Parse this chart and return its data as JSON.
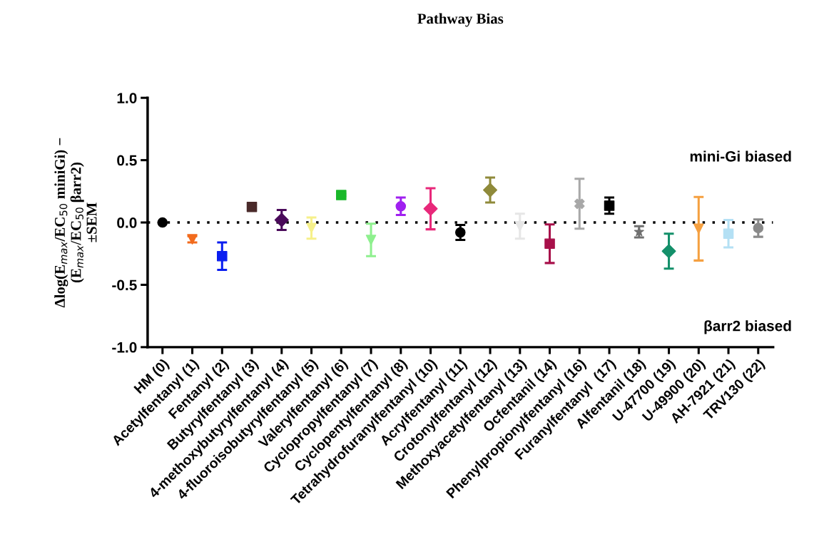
{
  "chart_data": {
    "type": "scatter",
    "title": "Pathway Bias",
    "ylabel": "Δlog(E$_{max}$/EC$_{50}$ miniGi) −\n(E$_{max}$/EC$_{50}$ βarr2)\n±SEM",
    "categories": [
      "HM (0)",
      "Acetylfentanyl (1)",
      "Fentanyl (2)",
      "Butyrylfentanyl (3)",
      "4-methoxybutyrylfentanyl (4)",
      "4-fluoroisobutyrylfentanyl (5)",
      "Valerylfentanyl (6)",
      "Cyclopropylfentanyl (7)",
      "Cyclopentylfentanyl (8)",
      "Tetrahydrofuranylfentanyl (10)",
      "Acrylfentanyl (11)",
      "Crotonylfentanyl (12)",
      "Methoxyacetylfentanyl (13)",
      "Ocfentanil (14)",
      "Phenylpropionylfentanyl (16)",
      "Furanylfentanyl  (17)",
      "Alfentanil (18)",
      "U-47700 (19)",
      "U-49900 (20)",
      "AH-7921 (21)",
      "TRV130 (22)"
    ],
    "series": [
      {
        "x": [
          "HM (0)"
        ],
        "values": [
          0.0
        ],
        "errors": [
          null
        ],
        "color": "#000000",
        "marker": "circle"
      },
      {
        "x": [
          "Acetylfentanyl (1)"
        ],
        "values": [
          -0.135
        ],
        "errors": [
          0.025
        ],
        "color": "#f26b1d",
        "marker": "triangle"
      },
      {
        "x": [
          "Fentanyl (2)"
        ],
        "values": [
          -0.27
        ],
        "errors": [
          0.11
        ],
        "color": "#0a1ef0",
        "marker": "square"
      },
      {
        "x": [
          "Butyrylfentanyl (3)"
        ],
        "values": [
          0.125
        ],
        "errors": [
          null
        ],
        "color": "#4a2a2a",
        "marker": "square"
      },
      {
        "x": [
          "4-methoxybutyrylfentanyl (4)"
        ],
        "values": [
          0.02
        ],
        "errors": [
          0.08
        ],
        "color": "#4a0a5a",
        "marker": "diamond"
      },
      {
        "x": [
          "4-fluoroisobutyrylfentanyl (5)"
        ],
        "values": [
          -0.045
        ],
        "errors": [
          0.085
        ],
        "color": "#f6f08a",
        "marker": "triangle"
      },
      {
        "x": [
          "Valerylfentanyl (6)"
        ],
        "values": [
          0.22
        ],
        "errors": [
          0.01
        ],
        "color": "#1ab82a",
        "marker": "square"
      },
      {
        "x": [
          "Cyclopropylfentanyl (7)"
        ],
        "values": [
          -0.14
        ],
        "errors": [
          0.13
        ],
        "color": "#8ef08e",
        "marker": "triangle"
      },
      {
        "x": [
          "Cyclopentylfentanyl (8)"
        ],
        "values": [
          0.13
        ],
        "errors": [
          0.07
        ],
        "color": "#a020f0",
        "marker": "circle"
      },
      {
        "x": [
          "Tetrahydrofuranylfentanyl (10)"
        ],
        "values": [
          0.11
        ],
        "errors": [
          0.165
        ],
        "color": "#e8287a",
        "marker": "diamond"
      },
      {
        "x": [
          "Acrylfentanyl (11)"
        ],
        "values": [
          -0.08
        ],
        "errors": [
          0.06
        ],
        "color": "#000000",
        "marker": "circle"
      },
      {
        "x": [
          "Crotonylfentanyl (12)"
        ],
        "values": [
          0.26
        ],
        "errors": [
          0.1
        ],
        "color": "#8f8a3a",
        "marker": "diamond"
      },
      {
        "x": [
          "Methoxyacetylfentanyl (13)"
        ],
        "values": [
          -0.03
        ],
        "errors": [
          0.1
        ],
        "color": "#e6e6e6",
        "marker": "triangle"
      },
      {
        "x": [
          "Ocfentanil (14)"
        ],
        "values": [
          -0.17
        ],
        "errors": [
          0.155
        ],
        "color": "#a8104a",
        "marker": "square"
      },
      {
        "x": [
          "Phenylpropionylfentanyl (16)"
        ],
        "values": [
          0.15
        ],
        "errors": [
          0.2
        ],
        "color": "#a8a8a8",
        "marker": "cross"
      },
      {
        "x": [
          "Furanylfentanyl  (17)"
        ],
        "values": [
          0.135
        ],
        "errors": [
          0.065
        ],
        "color": "#000000",
        "marker": "square"
      },
      {
        "x": [
          "Alfentanil (18)"
        ],
        "values": [
          -0.075
        ],
        "errors": [
          0.045
        ],
        "color": "#707070",
        "marker": "star"
      },
      {
        "x": [
          "U-47700 (19)"
        ],
        "values": [
          -0.23
        ],
        "errors": [
          0.14
        ],
        "color": "#14906a",
        "marker": "diamond"
      },
      {
        "x": [
          "U-49900 (20)"
        ],
        "values": [
          -0.05
        ],
        "errors": [
          0.255
        ],
        "color": "#f5a040",
        "marker": "triangle"
      },
      {
        "x": [
          "AH-7921 (21)"
        ],
        "values": [
          -0.09
        ],
        "errors": [
          0.11
        ],
        "color": "#b4e0f4",
        "marker": "square"
      },
      {
        "x": [
          "TRV130 (22)"
        ],
        "values": [
          -0.045
        ],
        "errors": [
          0.07
        ],
        "color": "#8a8a8a",
        "marker": "circle"
      }
    ],
    "ylim": [
      -1.0,
      1.0
    ],
    "yticks": [
      {
        "value": 1.0,
        "label": "1.0"
      },
      {
        "value": 0.5,
        "label": "0.5"
      },
      {
        "value": 0.0,
        "label": "0.0"
      },
      {
        "value": -0.5,
        "label": "-0.5"
      },
      {
        "value": -1.0,
        "label": "-1.0"
      }
    ],
    "ref_lines": [
      {
        "axis": "y",
        "value": 0,
        "color": "#000000",
        "line_style": "dotted"
      }
    ],
    "annotations": [
      "mini-Gi biased",
      "βarr2 biased"
    ],
    "grid": false,
    "legend": false
  }
}
